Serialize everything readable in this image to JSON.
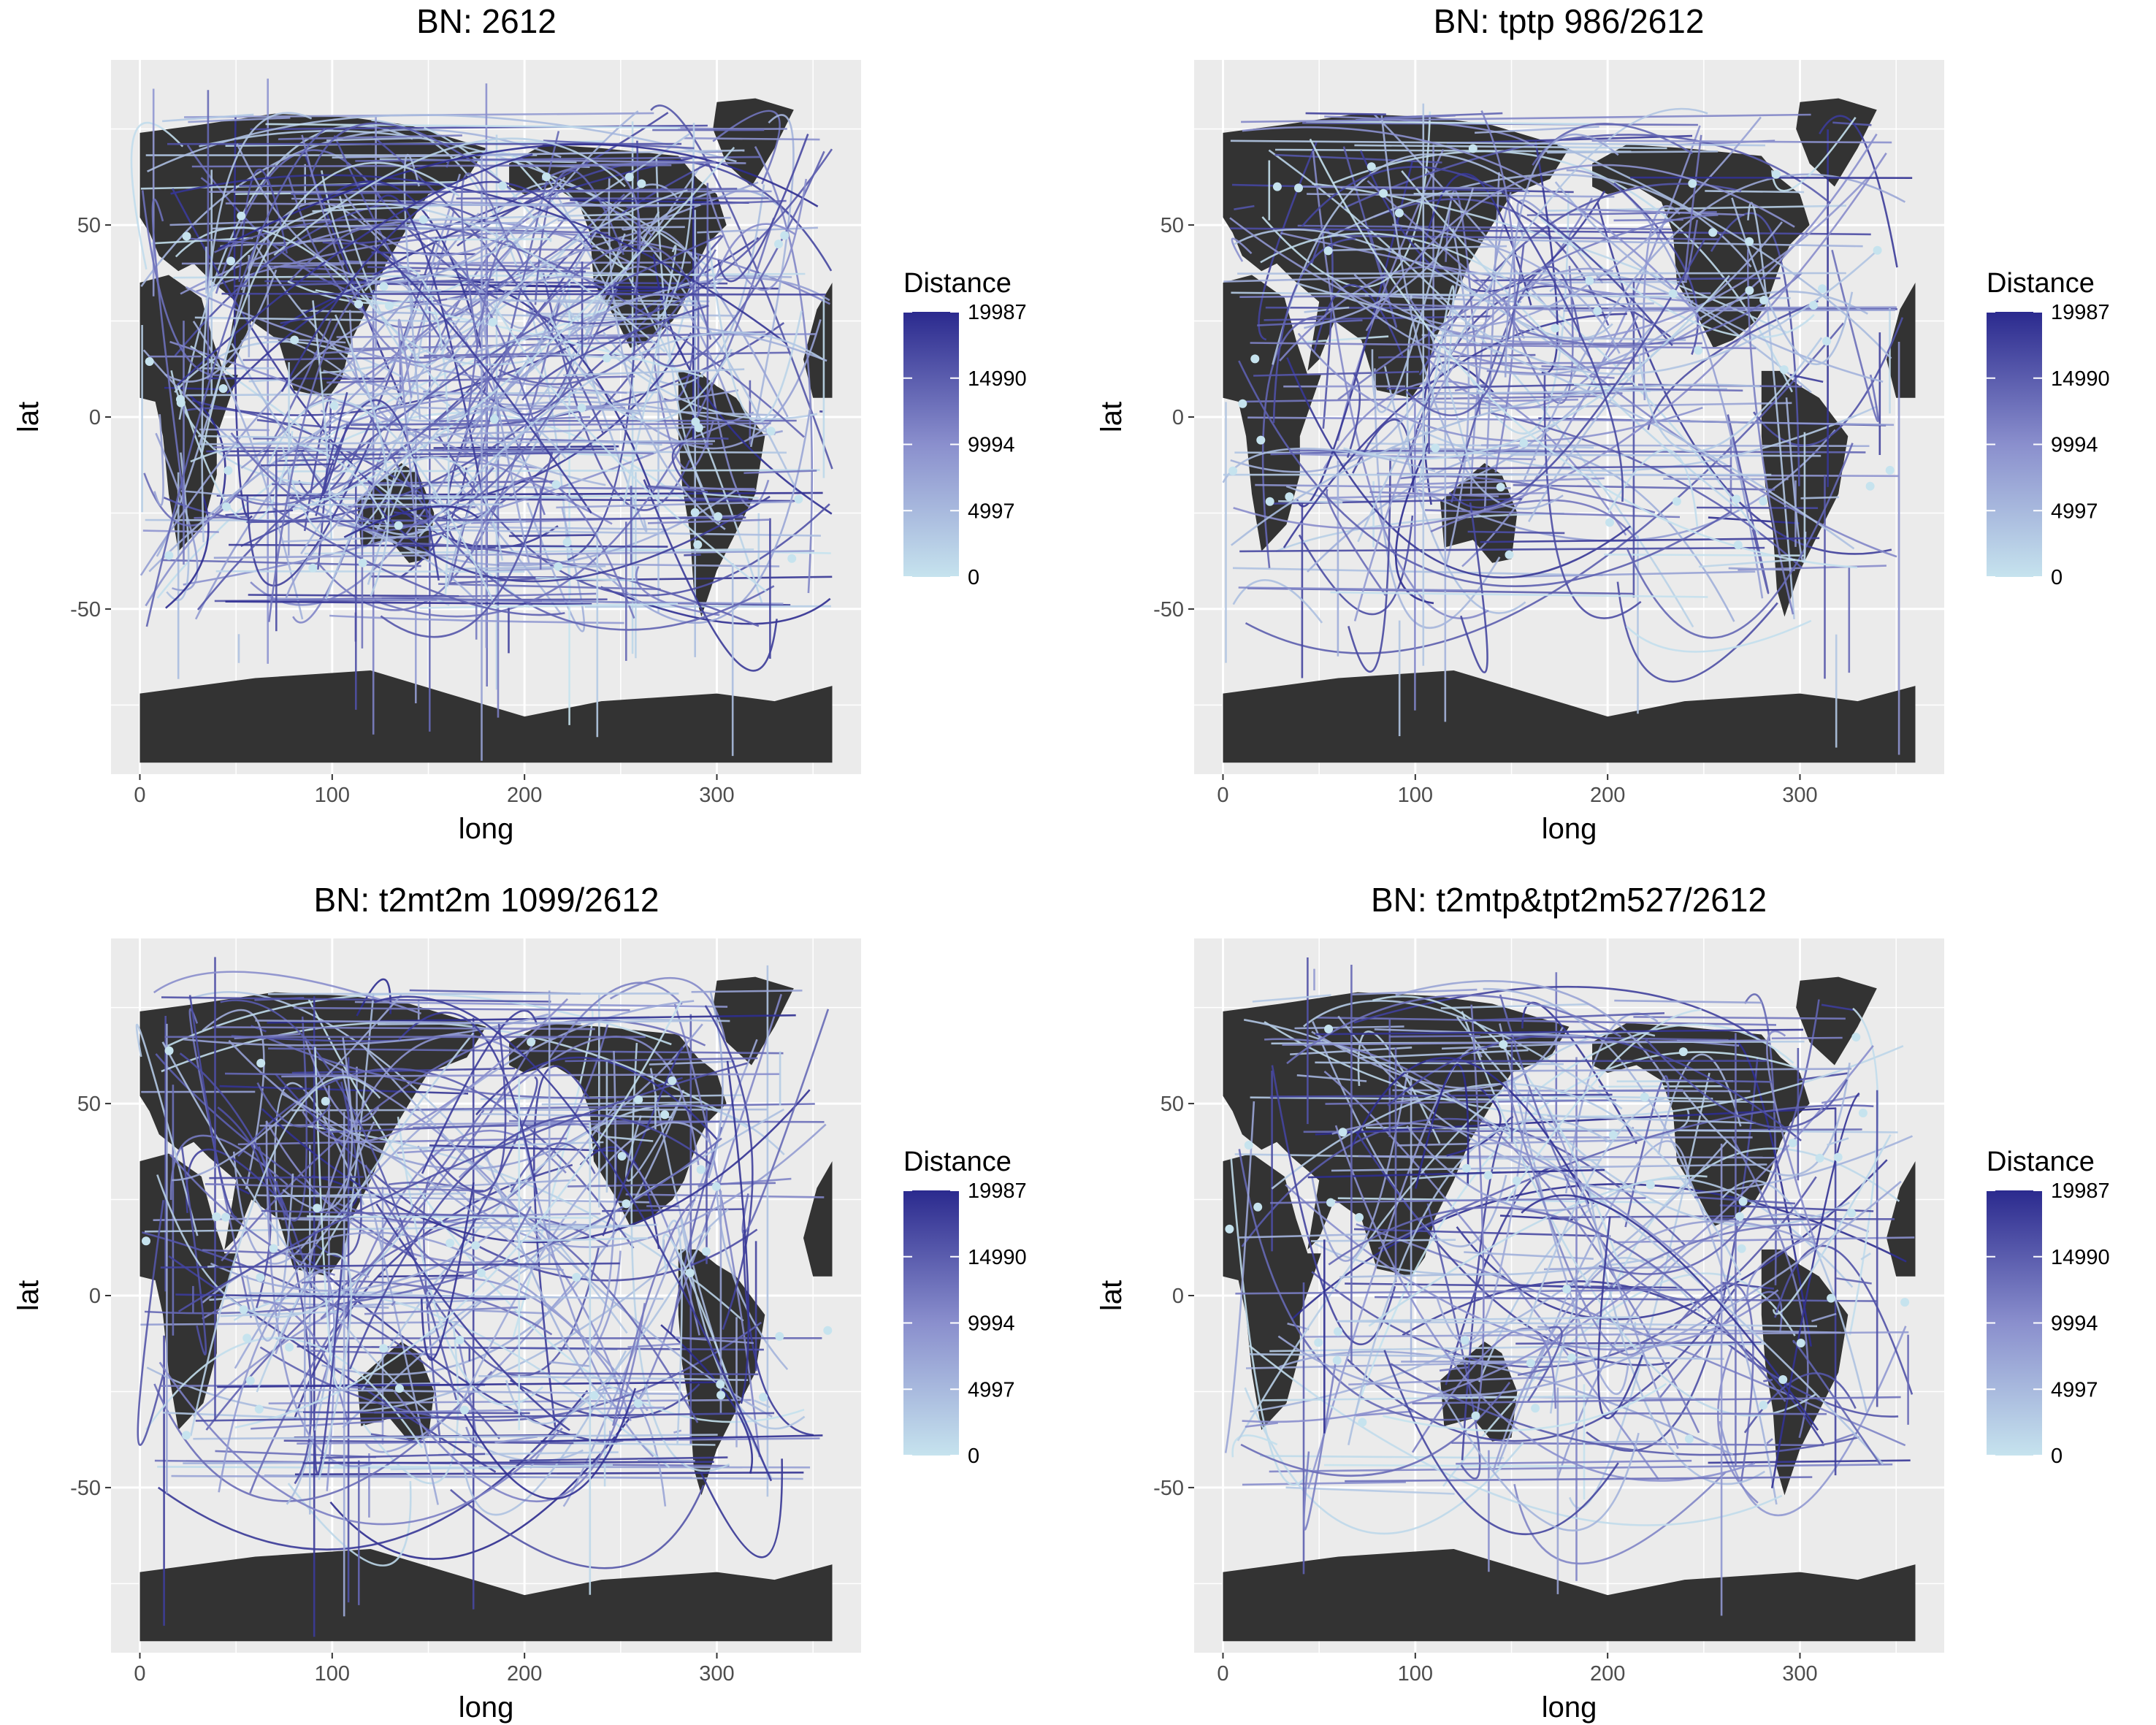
{
  "chart_data": [
    {
      "type": "map-lines",
      "title": "BN:  2612",
      "xlabel": "long",
      "ylabel": "lat",
      "xlim": [
        -15,
        375
      ],
      "ylim": [
        -93,
        93
      ],
      "x_ticks": [
        0,
        100,
        200,
        300
      ],
      "y_ticks": [
        50,
        0,
        -50
      ],
      "legend": {
        "title": "Distance",
        "labels": [
          "19987",
          "14990",
          "9994",
          "4997",
          "0"
        ]
      },
      "grid": true,
      "legend_position": "right",
      "colors": {
        "low": "#c6e3ee",
        "mid": "#8a8fcd",
        "high": "#2b2a8e",
        "land": "#333333",
        "panel": "#ebebeb"
      }
    },
    {
      "type": "map-lines",
      "title": "BN: tptp 986/2612",
      "xlabel": "long",
      "ylabel": "lat",
      "xlim": [
        -15,
        375
      ],
      "ylim": [
        -93,
        93
      ],
      "x_ticks": [
        0,
        100,
        200,
        300
      ],
      "y_ticks": [
        50,
        0,
        -50
      ],
      "legend": {
        "title": "Distance",
        "labels": [
          "19987",
          "14990",
          "9994",
          "4997",
          "0"
        ]
      },
      "grid": true,
      "legend_position": "right",
      "colors": {
        "low": "#c6e3ee",
        "mid": "#8a8fcd",
        "high": "#2b2a8e",
        "land": "#333333",
        "panel": "#ebebeb"
      }
    },
    {
      "type": "map-lines",
      "title": "BN: t2mt2m 1099/2612",
      "xlabel": "long",
      "ylabel": "lat",
      "xlim": [
        -15,
        375
      ],
      "ylim": [
        -93,
        93
      ],
      "x_ticks": [
        0,
        100,
        200,
        300
      ],
      "y_ticks": [
        50,
        0,
        -50
      ],
      "legend": {
        "title": "Distance",
        "labels": [
          "19987",
          "14990",
          "9994",
          "4997",
          "0"
        ]
      },
      "grid": true,
      "legend_position": "right",
      "colors": {
        "low": "#c6e3ee",
        "mid": "#8a8fcd",
        "high": "#2b2a8e",
        "land": "#333333",
        "panel": "#ebebeb"
      }
    },
    {
      "type": "map-lines",
      "title": "BN: t2mtp&tpt2m527/2612",
      "xlabel": "long",
      "ylabel": "lat",
      "xlim": [
        -15,
        375
      ],
      "ylim": [
        -93,
        93
      ],
      "x_ticks": [
        0,
        100,
        200,
        300
      ],
      "y_ticks": [
        50,
        0,
        -50
      ],
      "legend": {
        "title": "Distance",
        "labels": [
          "19987",
          "14990",
          "9994",
          "4997",
          "0"
        ]
      },
      "grid": true,
      "legend_position": "right",
      "colors": {
        "low": "#c6e3ee",
        "mid": "#8a8fcd",
        "high": "#2b2a8e",
        "land": "#333333",
        "panel": "#ebebeb"
      }
    }
  ]
}
